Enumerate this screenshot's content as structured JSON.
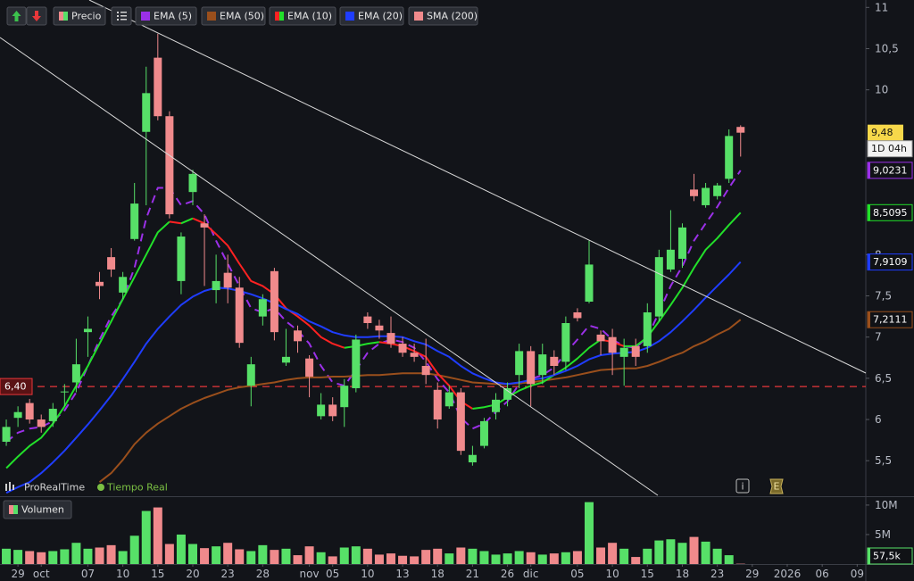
{
  "chart_data": {
    "type": "candlestick",
    "name": "Precio",
    "up_color": "#57e068",
    "down_color": "#f08a8c",
    "open": [
      5.73,
      6.02,
      6.2,
      6.0,
      5.98,
      6.33,
      6.45,
      7.06,
      7.67,
      7.97,
      7.54,
      8.19,
      9.49,
      10.39,
      9.68,
      7.68,
      8.76,
      8.38,
      7.57,
      7.78,
      7.6,
      6.41,
      7.25,
      7.8,
      6.69,
      7.08,
      6.74,
      6.04,
      6.18,
      6.15,
      6.38,
      7.25,
      7.14,
      7.05,
      6.92,
      6.81,
      6.65,
      6.36,
      6.16,
      6.33,
      5.48,
      5.68,
      6.09,
      6.24,
      6.54,
      6.83,
      6.54,
      6.76,
      6.7,
      7.3,
      7.43,
      7.03,
      7.0,
      6.76,
      6.89,
      6.89,
      7.25,
      7.82,
      7.95,
      8.79,
      8.6,
      8.71,
      8.92,
      9.55
    ],
    "high": [
      6.0,
      6.16,
      6.25,
      6.06,
      6.2,
      6.43,
      6.98,
      7.25,
      7.79,
      8.08,
      7.79,
      8.87,
      10.28,
      10.68,
      9.74,
      8.27,
      9.03,
      8.49,
      8.0,
      8.0,
      7.73,
      6.76,
      7.52,
      7.84,
      7.1,
      7.14,
      6.78,
      6.32,
      6.27,
      6.49,
      7.03,
      7.3,
      7.21,
      7.25,
      7.0,
      6.92,
      6.98,
      6.45,
      6.41,
      6.38,
      5.68,
      6.02,
      6.32,
      6.45,
      6.92,
      6.89,
      6.92,
      6.84,
      7.25,
      7.35,
      8.17,
      7.08,
      7.1,
      6.98,
      6.98,
      7.41,
      8.06,
      8.54,
      8.38,
      8.98,
      8.87,
      8.87,
      9.52,
      9.57
    ],
    "low": [
      5.68,
      5.91,
      5.95,
      5.84,
      5.91,
      6.16,
      6.33,
      6.76,
      7.46,
      7.73,
      7.46,
      8.17,
      8.6,
      9.63,
      8.44,
      7.52,
      8.6,
      7.62,
      7.41,
      7.41,
      6.87,
      6.16,
      7.14,
      6.96,
      6.65,
      6.81,
      6.27,
      6.0,
      5.98,
      5.91,
      6.33,
      7.1,
      6.98,
      6.87,
      6.76,
      6.7,
      6.43,
      5.89,
      6.13,
      5.57,
      5.44,
      5.65,
      6.0,
      6.16,
      6.38,
      6.16,
      6.43,
      6.54,
      6.6,
      7.19,
      7.41,
      6.78,
      6.54,
      6.41,
      6.65,
      6.81,
      7.19,
      7.79,
      7.84,
      8.65,
      8.57,
      8.67,
      8.87,
      9.19
    ],
    "close": [
      5.91,
      6.09,
      6.0,
      5.91,
      6.13,
      6.34,
      6.67,
      7.1,
      7.62,
      7.82,
      7.73,
      8.62,
      9.96,
      9.68,
      8.49,
      8.22,
      8.98,
      8.33,
      7.68,
      7.6,
      6.93,
      6.67,
      7.46,
      7.06,
      6.76,
      6.95,
      6.52,
      6.18,
      6.04,
      6.41,
      6.97,
      7.17,
      7.08,
      6.92,
      6.81,
      6.76,
      6.54,
      6.0,
      6.33,
      5.62,
      5.57,
      5.98,
      6.24,
      6.38,
      6.83,
      6.43,
      6.79,
      6.65,
      7.17,
      7.23,
      7.88,
      6.95,
      6.81,
      6.87,
      6.76,
      7.3,
      7.97,
      8.06,
      8.33,
      8.71,
      8.81,
      8.84,
      9.44,
      9.48
    ],
    "close_labels": {
      "63": "9,48"
    },
    "volume": [
      2.6,
      2.4,
      2.2,
      2.0,
      2.2,
      2.5,
      3.6,
      2.6,
      2.8,
      3.2,
      2.2,
      4.8,
      9.0,
      9.6,
      3.4,
      5.0,
      3.4,
      2.7,
      3.0,
      3.6,
      2.5,
      2.2,
      3.2,
      2.4,
      2.6,
      1.5,
      3.0,
      2.0,
      1.3,
      2.8,
      3.0,
      2.6,
      1.6,
      1.8,
      1.4,
      1.3,
      2.4,
      2.6,
      1.8,
      2.8,
      2.6,
      2.2,
      1.6,
      1.8,
      2.2,
      2.0,
      1.6,
      1.8,
      2.0,
      2.2,
      10.5,
      2.8,
      3.6,
      2.6,
      1.2,
      2.6,
      4.0,
      4.2,
      3.6,
      4.6,
      3.8,
      2.6,
      1.5,
      0.0575
    ],
    "volume_name": "Volumen",
    "volume_labels": {
      "63": "57,5k"
    },
    "vlim": [
      0,
      11.2
    ],
    "vticks": [
      {
        "value": 10,
        "label": "10M"
      },
      {
        "value": 5,
        "label": "5M"
      }
    ],
    "series": [
      {
        "name": "EMA (5)",
        "color": "#9b30e8",
        "dash": true,
        "values": [
          5.73,
          5.84,
          5.89,
          5.91,
          5.98,
          6.11,
          6.33,
          6.65,
          6.97,
          7.25,
          7.46,
          7.84,
          8.44,
          8.81,
          8.81,
          8.6,
          8.65,
          8.49,
          8.17,
          7.89,
          7.62,
          7.35,
          7.3,
          7.35,
          7.19,
          7.08,
          6.92,
          6.65,
          6.45,
          6.41,
          6.6,
          6.81,
          6.92,
          6.97,
          6.94,
          6.87,
          6.7,
          6.49,
          6.33,
          6.02,
          5.89,
          5.95,
          6.09,
          6.22,
          6.43,
          6.49,
          6.54,
          6.63,
          6.81,
          6.97,
          7.14,
          7.1,
          6.97,
          6.89,
          6.87,
          7.0,
          7.3,
          7.62,
          7.86,
          8.17,
          8.38,
          8.58,
          8.81,
          9.0231
        ],
        "value_labels": {
          "63": "9,0231"
        }
      },
      {
        "name": "EMA (50)",
        "color": "#9a4f1c",
        "values": [
          null,
          null,
          null,
          null,
          null,
          null,
          null,
          null,
          5.24,
          5.35,
          5.51,
          5.7,
          5.84,
          5.95,
          6.04,
          6.13,
          6.2,
          6.26,
          6.31,
          6.36,
          6.39,
          6.41,
          6.43,
          6.45,
          6.48,
          6.5,
          6.51,
          6.51,
          6.52,
          6.52,
          6.53,
          6.54,
          6.54,
          6.55,
          6.56,
          6.56,
          6.56,
          6.54,
          6.51,
          6.48,
          6.45,
          6.44,
          6.43,
          6.43,
          6.44,
          6.45,
          6.47,
          6.49,
          6.51,
          6.54,
          6.57,
          6.6,
          6.61,
          6.62,
          6.62,
          6.65,
          6.7,
          6.76,
          6.81,
          6.89,
          6.95,
          7.03,
          7.1,
          7.2111
        ],
        "value_labels": {
          "63": "7,2111"
        }
      },
      {
        "name": "EMA (10)",
        "color": "#22e02a",
        "down_color": "#ff2222",
        "values": [
          5.41,
          5.55,
          5.68,
          5.78,
          5.95,
          6.16,
          6.41,
          6.65,
          6.92,
          7.19,
          7.46,
          7.73,
          8.0,
          8.27,
          8.4,
          8.38,
          8.44,
          8.38,
          8.25,
          8.11,
          7.89,
          7.68,
          7.62,
          7.52,
          7.35,
          7.25,
          7.14,
          7.0,
          6.92,
          6.87,
          6.89,
          6.92,
          6.94,
          6.92,
          6.89,
          6.83,
          6.76,
          6.56,
          6.41,
          6.22,
          6.13,
          6.15,
          6.18,
          6.27,
          6.35,
          6.41,
          6.45,
          6.54,
          6.63,
          6.74,
          6.87,
          6.97,
          6.94,
          6.89,
          6.89,
          7.0,
          7.19,
          7.39,
          7.6,
          7.84,
          8.06,
          8.2,
          8.36,
          8.5095
        ],
        "value_labels": {
          "63": "8,5095"
        }
      },
      {
        "name": "EMA (20)",
        "color": "#1f3dff",
        "values": [
          5.11,
          5.18,
          5.24,
          5.35,
          5.48,
          5.62,
          5.78,
          5.94,
          6.11,
          6.29,
          6.49,
          6.7,
          6.92,
          7.1,
          7.25,
          7.39,
          7.49,
          7.56,
          7.6,
          7.59,
          7.56,
          7.52,
          7.47,
          7.41,
          7.34,
          7.28,
          7.19,
          7.13,
          7.06,
          7.02,
          7.0,
          7.0,
          7.01,
          7.01,
          7.0,
          6.95,
          6.91,
          6.83,
          6.76,
          6.65,
          6.56,
          6.5,
          6.45,
          6.43,
          6.45,
          6.48,
          6.5,
          6.54,
          6.59,
          6.65,
          6.73,
          6.78,
          6.8,
          6.81,
          6.82,
          6.87,
          6.95,
          7.06,
          7.19,
          7.33,
          7.48,
          7.62,
          7.76,
          7.9109
        ],
        "value_labels": {
          "63": "7,9109"
        }
      },
      {
        "name": "SMA (200)",
        "color": "#f08a8c",
        "values": [
          null,
          null,
          null,
          null,
          null,
          null,
          null,
          null,
          null,
          null,
          null,
          null,
          null,
          null,
          null,
          null,
          null,
          null,
          null,
          null,
          null,
          null,
          null,
          null,
          null,
          null,
          null,
          null,
          null,
          null,
          null,
          null,
          null,
          null,
          null,
          null,
          null,
          null,
          null,
          null,
          null,
          null,
          null,
          null,
          null,
          null,
          null,
          null,
          null,
          null,
          null,
          null,
          null,
          null,
          null,
          null,
          null,
          null,
          null,
          null,
          null,
          null,
          null,
          null
        ]
      }
    ],
    "hline": {
      "value": 6.4,
      "label": "6,40",
      "color": "#e8373a"
    },
    "xlim": [
      -0.54,
      73.74
    ],
    "xticks": [
      {
        "value": 1,
        "label": "29"
      },
      {
        "value": 3,
        "label": "oct"
      },
      {
        "value": 7,
        "label": "07"
      },
      {
        "value": 10,
        "label": "10"
      },
      {
        "value": 13,
        "label": "15"
      },
      {
        "value": 16,
        "label": "20"
      },
      {
        "value": 19,
        "label": "23"
      },
      {
        "value": 22,
        "label": "28"
      },
      {
        "value": 26,
        "label": "nov"
      },
      {
        "value": 28,
        "label": "05"
      },
      {
        "value": 31,
        "label": "10"
      },
      {
        "value": 34,
        "label": "13"
      },
      {
        "value": 37,
        "label": "18"
      },
      {
        "value": 40,
        "label": "21"
      },
      {
        "value": 43,
        "label": "26"
      },
      {
        "value": 45,
        "label": "dic"
      },
      {
        "value": 49,
        "label": "05"
      },
      {
        "value": 52,
        "label": "10"
      },
      {
        "value": 55,
        "label": "15"
      },
      {
        "value": 58,
        "label": "18"
      },
      {
        "value": 61,
        "label": "23"
      },
      {
        "value": 64,
        "label": "29"
      },
      {
        "value": 67,
        "label": "2026"
      },
      {
        "value": 70,
        "label": "06"
      },
      {
        "value": 73,
        "label": "09"
      }
    ],
    "ylim": [
      5.08,
      11.09
    ],
    "yticks": [
      11,
      {
        "value": 10.5,
        "label": "10,5"
      },
      10,
      8,
      {
        "value": 7.5,
        "label": "7,5"
      },
      7,
      {
        "value": 6.5,
        "label": "6,5"
      },
      6,
      {
        "value": 5.5,
        "label": "5,5"
      }
    ],
    "grid": false,
    "timer": "1D 04h",
    "brand": "ProRealTime",
    "status": "Tiempo Real",
    "badges": [
      "i",
      "E"
    ]
  }
}
